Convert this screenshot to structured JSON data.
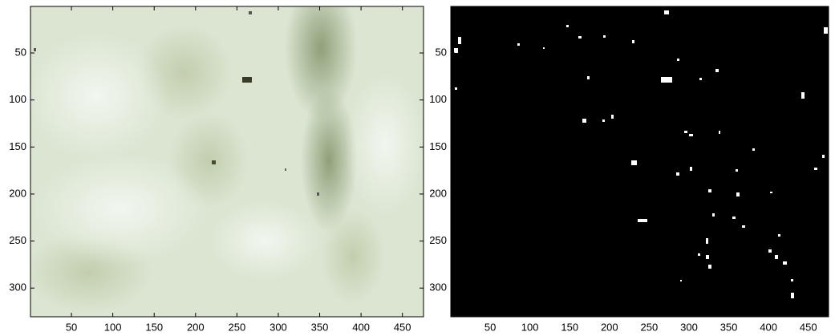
{
  "chart_data": [
    {
      "type": "image",
      "xlim": [
        0.5,
        475.5
      ],
      "ylim": [
        0.5,
        330.5
      ],
      "y_reversed": true,
      "xticks": [
        50,
        100,
        150,
        200,
        250,
        300,
        350,
        400,
        450
      ],
      "yticks": [
        50,
        100,
        150,
        200,
        250,
        300
      ]
    },
    {
      "type": "image",
      "xlim": [
        0.5,
        475.5
      ],
      "ylim": [
        0.5,
        330.5
      ],
      "y_reversed": true,
      "xticks": [
        50,
        100,
        150,
        200,
        250,
        300,
        350,
        400,
        450
      ],
      "yticks": [
        50,
        100,
        150,
        200,
        250,
        300
      ]
    }
  ]
}
